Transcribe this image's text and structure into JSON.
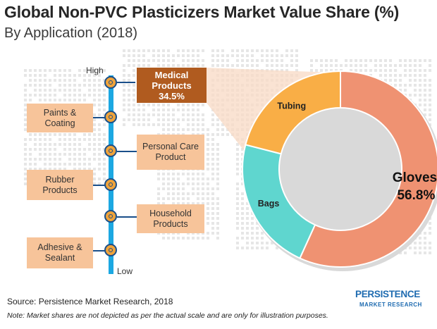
{
  "header": {
    "title": "Global Non-PVC Plasticizers Market Value Share (%)",
    "subtitle": "By Application  (2018)"
  },
  "scale": {
    "high_label": "High",
    "low_label": "Low"
  },
  "applications": [
    {
      "label": "Medical Products",
      "value": "34.5%",
      "highlight": true
    },
    {
      "label": "Paints & Coating",
      "highlight": false
    },
    {
      "label": "Personal Care Product",
      "highlight": false
    },
    {
      "label": "Rubber Products",
      "highlight": false
    },
    {
      "label": "Household Products",
      "highlight": false
    },
    {
      "label": "Adhesive & Sealant",
      "highlight": false
    }
  ],
  "chart_data": {
    "type": "pie",
    "variant": "donut",
    "parent_category": "Medical Products",
    "parent_value": 34.5,
    "slices": [
      {
        "label": "Gloves",
        "value": 56.8,
        "display": "56.8%",
        "color": "#ef9272"
      },
      {
        "label": "Bags",
        "value": 22.2,
        "color": "#5fd6cf"
      },
      {
        "label": "Tubing",
        "value": 21.0,
        "color": "#f9ae46"
      }
    ]
  },
  "colors": {
    "highlight_box": "#b05b1f",
    "box": "#f7c49a",
    "axis_bar": "#1ca8e2",
    "node": "#f0a33a"
  },
  "footer": {
    "source": "Source: Persistence Market Research, 2018",
    "note": "Note: Market shares are not depicted as per the actual scale and are only for illustration purposes."
  },
  "logo": {
    "name": "PERSISTENCE",
    "tagline": "MARKET RESEARCH"
  }
}
